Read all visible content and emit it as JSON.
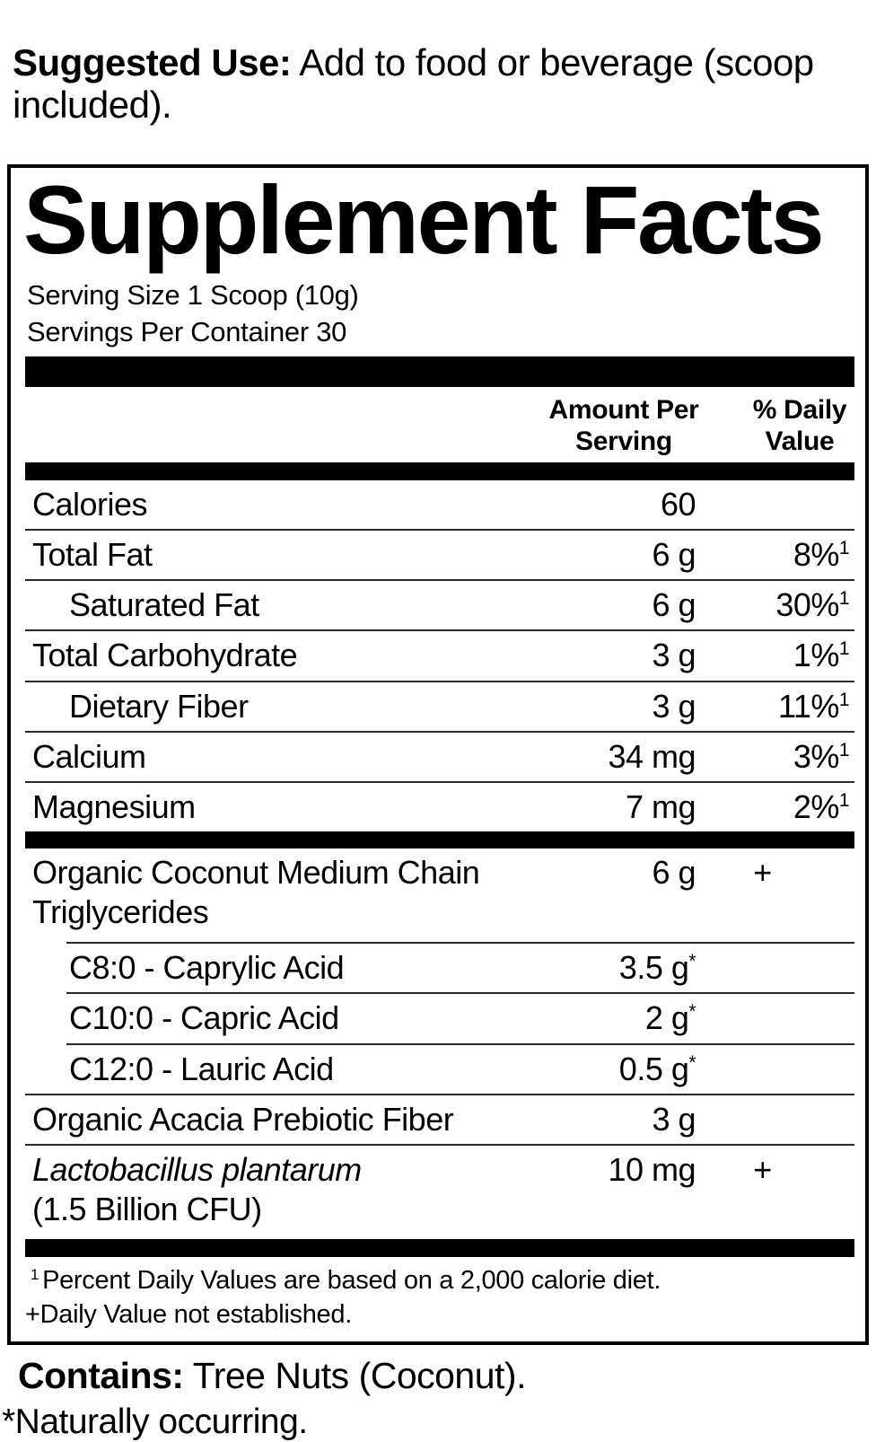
{
  "suggested_use": {
    "label": "Suggested Use:",
    "text": "Add to food or beverage (scoop included)."
  },
  "panel": {
    "title": "Supplement Facts",
    "serving_size": "Serving Size 1 Scoop (10g)",
    "servings_per_container": "Servings Per Container 30",
    "columns": {
      "amount_line1": "Amount Per",
      "amount_line2": "Serving",
      "dv_line1": "% Daily",
      "dv_line2": "Value"
    },
    "rows": [
      {
        "name": "Calories",
        "amount": "60",
        "amount_sup": "",
        "dv": "",
        "dv_sup": "",
        "indent": false,
        "italic": false,
        "divider": "none",
        "bar_before": false,
        "name2": ""
      },
      {
        "name": "Total Fat",
        "amount": "6 g",
        "amount_sup": "",
        "dv": "8%",
        "dv_sup": "1",
        "indent": false,
        "italic": false,
        "divider": "full",
        "bar_before": false,
        "name2": ""
      },
      {
        "name": "Saturated Fat",
        "amount": "6 g",
        "amount_sup": "",
        "dv": "30%",
        "dv_sup": "1",
        "indent": true,
        "italic": false,
        "divider": "full",
        "bar_before": false,
        "name2": ""
      },
      {
        "name": "Total Carbohydrate",
        "amount": "3 g",
        "amount_sup": "",
        "dv": "1%",
        "dv_sup": "1",
        "indent": false,
        "italic": false,
        "divider": "full",
        "bar_before": false,
        "name2": ""
      },
      {
        "name": "Dietary Fiber",
        "amount": "3 g",
        "amount_sup": "",
        "dv": "11%",
        "dv_sup": "1",
        "indent": true,
        "italic": false,
        "divider": "full",
        "bar_before": false,
        "name2": ""
      },
      {
        "name": "Calcium",
        "amount": "34 mg",
        "amount_sup": "",
        "dv": "3%",
        "dv_sup": "1",
        "indent": false,
        "italic": false,
        "divider": "full",
        "bar_before": false,
        "name2": ""
      },
      {
        "name": "Magnesium",
        "amount": "7 mg",
        "amount_sup": "",
        "dv": "2%",
        "dv_sup": "1",
        "indent": false,
        "italic": false,
        "divider": "full",
        "bar_before": false,
        "name2": ""
      },
      {
        "name": "Organic Coconut Medium Chain",
        "name2": "Triglycerides",
        "amount": "6 g",
        "amount_sup": "",
        "dv": "+",
        "dv_sup": "",
        "indent": false,
        "italic": false,
        "divider": "none",
        "bar_before": true
      },
      {
        "name": "C8:0 - Caprylic Acid",
        "amount": "3.5 g",
        "amount_sup": "*",
        "dv": "",
        "dv_sup": "",
        "indent": true,
        "italic": false,
        "divider": "indent",
        "bar_before": false,
        "name2": ""
      },
      {
        "name": "C10:0 - Capric Acid",
        "amount": "2 g",
        "amount_sup": "*",
        "dv": "",
        "dv_sup": "",
        "indent": true,
        "italic": false,
        "divider": "indent",
        "bar_before": false,
        "name2": ""
      },
      {
        "name": "C12:0 - Lauric Acid",
        "amount": "0.5 g",
        "amount_sup": "*",
        "dv": "",
        "dv_sup": "",
        "indent": true,
        "italic": false,
        "divider": "indent",
        "bar_before": false,
        "name2": ""
      },
      {
        "name": "Organic Acacia Prebiotic Fiber",
        "amount": "3 g",
        "amount_sup": "",
        "dv": "",
        "dv_sup": "",
        "indent": false,
        "italic": false,
        "divider": "full",
        "bar_before": false,
        "name2": ""
      },
      {
        "name": "Lactobacillus plantarum",
        "name2": "(1.5 Billion CFU)",
        "amount": "10 mg",
        "amount_sup": "",
        "dv": "+",
        "dv_sup": "",
        "indent": false,
        "italic": true,
        "divider": "full",
        "bar_before": false
      }
    ],
    "footnotes": [
      {
        "sup": "1",
        "text": "Percent Daily Values are based on a 2,000 calorie diet."
      },
      {
        "sup": "",
        "text": "+Daily Value not established."
      }
    ]
  },
  "contains": {
    "label": "Contains:",
    "text": "Tree Nuts (Coconut)."
  },
  "naturally_occurring": "*Naturally occurring."
}
